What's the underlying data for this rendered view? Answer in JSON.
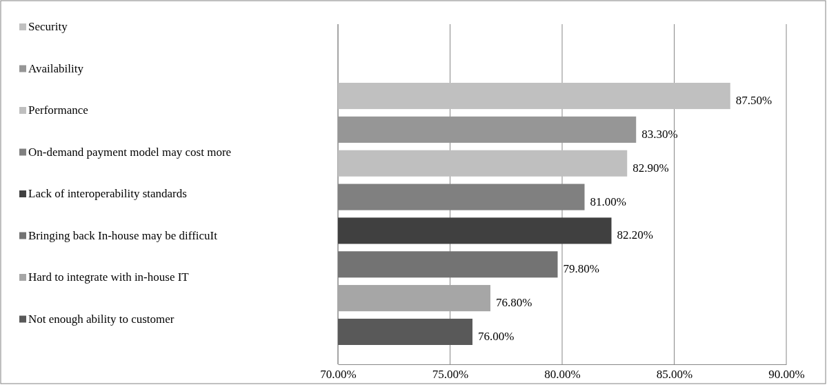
{
  "chart_data": {
    "type": "bar",
    "orientation": "horizontal",
    "categories": [
      null,
      null,
      null,
      null,
      null,
      null,
      null,
      null
    ],
    "series": [
      {
        "name": "Security",
        "color": "#c0c0c0",
        "values": [
          87.5,
          null,
          null,
          null,
          null,
          null,
          null,
          null
        ]
      },
      {
        "name": "Availability",
        "color": "#969696",
        "values": [
          null,
          83.3,
          null,
          null,
          null,
          null,
          null,
          null
        ]
      },
      {
        "name": "Performance",
        "color": "#bfbfbf",
        "values": [
          null,
          null,
          82.9,
          null,
          null,
          null,
          null,
          null
        ]
      },
      {
        "name": "On-demand payment model may cost more",
        "color": "#808080",
        "values": [
          null,
          null,
          null,
          81.0,
          null,
          null,
          null,
          null
        ]
      },
      {
        "name": "Lack of interoperability standards",
        "color": "#404040",
        "values": [
          null,
          null,
          null,
          null,
          82.2,
          null,
          null,
          null
        ]
      },
      {
        "name": "Bringing back In-house may be difficuIt",
        "color": "#737373",
        "values": [
          null,
          null,
          null,
          null,
          null,
          79.8,
          null,
          null
        ]
      },
      {
        "name": "Hard to integrate with in-house IT",
        "color": "#a6a6a6",
        "values": [
          null,
          null,
          null,
          null,
          null,
          null,
          76.8,
          null
        ]
      },
      {
        "name": "Not enough ability to customer",
        "color": "#595959",
        "values": [
          null,
          null,
          null,
          null,
          null,
          null,
          null,
          76.0
        ]
      }
    ],
    "value_labels": [
      "87.50%",
      "83.30%",
      "82.90%",
      "81.00%",
      "82.20%",
      "79.80%",
      "76.80%",
      "76.00%"
    ],
    "xlim": [
      70,
      90
    ],
    "xticks": [
      {
        "value": 70,
        "label": "70.00%"
      },
      {
        "value": 75,
        "label": "75.00%"
      },
      {
        "value": 80,
        "label": "80.00%"
      },
      {
        "value": 85,
        "label": "85.00%"
      },
      {
        "value": 90,
        "label": "90.00%"
      }
    ],
    "grid": "x",
    "legend": "left",
    "stacked": true
  }
}
